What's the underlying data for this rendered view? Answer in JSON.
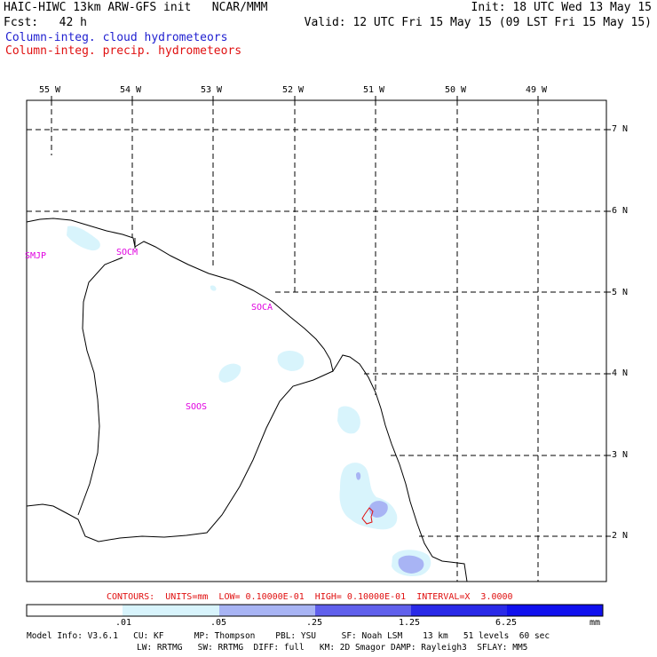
{
  "header": {
    "title": "HAIC-HIWC 13km ARW-GFS init   NCAR/MMM",
    "fcst": "Fcst:   42 h",
    "init": "Init: 18 UTC Wed 13 May 15",
    "valid": "Valid: 12 UTC Fri 15 May 15 (09 LST Fri 15 May 15)",
    "legend_cloud": "Column-integ. cloud hydrometeors",
    "legend_precip": "Column-integ. precip. hydrometeors"
  },
  "map": {
    "lon_labels": [
      "55 W",
      "54 W",
      "53 W",
      "52 W",
      "51 W",
      "50 W",
      "49 W"
    ],
    "lat_labels": [
      "7 N",
      "6 N",
      "5 N",
      "4 N",
      "3 N",
      "2 N"
    ],
    "stations": [
      "SMJP",
      "SOCM",
      "SOCA",
      "SOOS"
    ]
  },
  "contour_info": "CONTOURS:  UNITS=mm  LOW= 0.10000E-01  HIGH= 0.10000E-01  INTERVAL=X  3.0000",
  "colorbar": {
    "labels": [
      ".01",
      ".05",
      ".25",
      "1.25",
      "6.25"
    ],
    "unit": "mm",
    "colors": [
      "#ffffff",
      "#d8f4fc",
      "#a8b4f4",
      "#6060ec",
      "#2a2ae8",
      "#1010ee"
    ]
  },
  "footer": {
    "line1": "Model Info: V3.6.1   CU: KF      MP: Thompson    PBL: YSU     SF: Noah LSM    13 km   51 levels  60 sec",
    "line2": "LW: RRTMG   SW: RRTMG  DIFF: full   KM: 2D Smagor DAMP: Rayleigh3  SFLAY: MM5"
  },
  "colors": {
    "cloud": "#1f1fd0",
    "precip": "#e01010",
    "station": "#e000e0"
  }
}
